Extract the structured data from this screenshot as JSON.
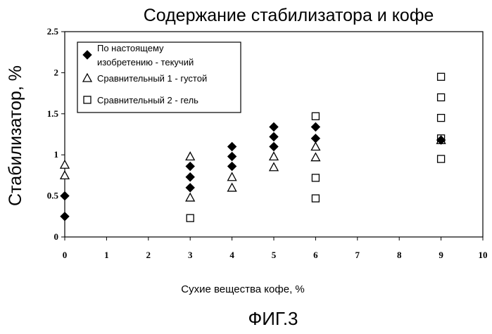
{
  "chart_data": {
    "type": "scatter",
    "title": "Содержание стабилизатора и кофе",
    "xlabel": "Сухие вещества кофе, %",
    "ylabel": "Стабилизатор, %",
    "xlim": [
      0,
      10
    ],
    "ylim": [
      0,
      2.5
    ],
    "x_ticks": [
      "0",
      "1",
      "2",
      "3",
      "4",
      "5",
      "6",
      "7",
      "8",
      "9",
      "10"
    ],
    "y_ticks": [
      "0",
      "0.5",
      "1",
      "1.5",
      "2",
      "2.5"
    ],
    "grid": false,
    "legend_position": "top-left",
    "series": [
      {
        "name": "По настоящему изобретению - текучий",
        "legend_lines": [
          "По настоящему",
          "изобретению - текучий"
        ],
        "marker": "diamond-filled",
        "points": [
          [
            0,
            0.25
          ],
          [
            0,
            0.5
          ],
          [
            3,
            0.6
          ],
          [
            3,
            0.73
          ],
          [
            3,
            0.86
          ],
          [
            4,
            0.86
          ],
          [
            4,
            0.98
          ],
          [
            4,
            1.1
          ],
          [
            5,
            1.1
          ],
          [
            5,
            1.22
          ],
          [
            5,
            1.34
          ],
          [
            6,
            1.2
          ],
          [
            6,
            1.34
          ],
          [
            9,
            1.18
          ]
        ]
      },
      {
        "name": "Сравнительный 1 - густой",
        "legend_lines": [
          "Сравнительный 1 - густой"
        ],
        "marker": "triangle-open",
        "points": [
          [
            0,
            0.75
          ],
          [
            0,
            0.88
          ],
          [
            3,
            0.48
          ],
          [
            3,
            0.98
          ],
          [
            4,
            0.6
          ],
          [
            4,
            0.73
          ],
          [
            5,
            0.85
          ],
          [
            5,
            0.98
          ],
          [
            6,
            0.97
          ],
          [
            6,
            1.1
          ],
          [
            9,
            1.18
          ]
        ]
      },
      {
        "name": "Сравнительный 2 - гель",
        "legend_lines": [
          "Сравнительный 2 - гель"
        ],
        "marker": "square-open",
        "points": [
          [
            3,
            0.23
          ],
          [
            6,
            0.47
          ],
          [
            6,
            0.72
          ],
          [
            6,
            1.47
          ],
          [
            9,
            0.95
          ],
          [
            9,
            1.2
          ],
          [
            9,
            1.45
          ],
          [
            9,
            1.7
          ],
          [
            9,
            1.95
          ]
        ]
      }
    ]
  },
  "caption": "ФИГ.3"
}
